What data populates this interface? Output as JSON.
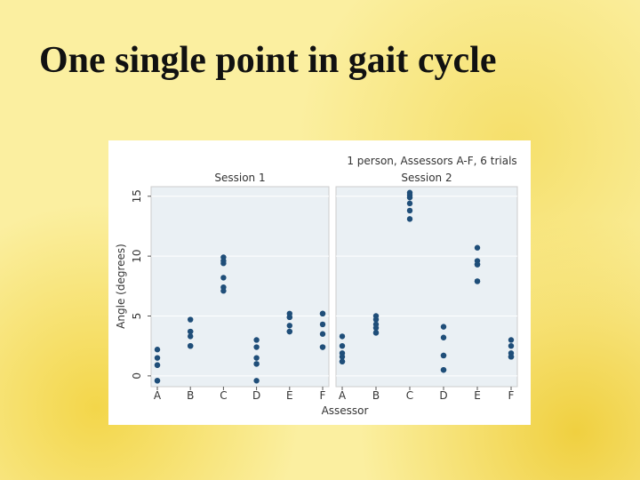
{
  "title": "One single point in gait cycle",
  "chart_data": {
    "type": "scatter",
    "title": "1 person, Assessors A-F, 6 trials",
    "x_label": "Assessor",
    "y_label": "Angle (degrees)",
    "categories": [
      "A",
      "B",
      "C",
      "D",
      "E",
      "F"
    ],
    "ylim": [
      -0.9,
      15.8
    ],
    "yticks": [
      0,
      5,
      10,
      15
    ],
    "grid": true,
    "color": "#1f4e79",
    "panels": [
      {
        "title": "Session 1",
        "values": [
          [
            2.2,
            1.5,
            0.9,
            0.9,
            -0.4,
            -0.4
          ],
          [
            4.7,
            3.7,
            3.7,
            3.3,
            2.5,
            2.5
          ],
          [
            9.9,
            9.6,
            9.4,
            8.2,
            7.4,
            7.1
          ],
          [
            3.0,
            2.4,
            1.5,
            1.0,
            1.0,
            -0.4
          ],
          [
            5.2,
            4.9,
            4.9,
            4.2,
            3.7,
            3.7
          ],
          [
            5.2,
            5.2,
            4.3,
            3.5,
            2.4,
            2.4
          ]
        ]
      },
      {
        "title": "Session 2",
        "values": [
          [
            3.3,
            2.5,
            1.9,
            1.6,
            1.2,
            1.2
          ],
          [
            5.0,
            4.7,
            4.3,
            4.0,
            3.6,
            3.6
          ],
          [
            15.3,
            15.1,
            14.9,
            14.4,
            13.8,
            13.1
          ],
          [
            4.1,
            3.2,
            1.7,
            1.7,
            0.5,
            0.5
          ],
          [
            10.7,
            9.6,
            9.3,
            9.3,
            7.9,
            7.9
          ],
          [
            3.0,
            2.5,
            1.9,
            1.6,
            1.6,
            1.6
          ]
        ]
      }
    ]
  }
}
